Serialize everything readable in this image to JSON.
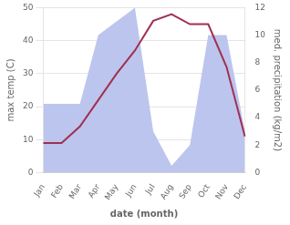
{
  "chart_data": {
    "type": "line",
    "categories": [
      "Jan",
      "Feb",
      "Mar",
      "Apr",
      "May",
      "Jun",
      "Jul",
      "Aug",
      "Sep",
      "Oct",
      "Nov",
      "Dec"
    ],
    "series": [
      {
        "type": "line",
        "color": "#a03050",
        "values": [
          9,
          9,
          14,
          22,
          30,
          37,
          46,
          48,
          45,
          45,
          32,
          11
        ]
      },
      {
        "type": "area",
        "color": "#bcc5ee",
        "axis": "y2",
        "values": [
          5,
          5,
          5,
          10,
          11,
          12,
          3,
          0.5,
          2,
          10,
          10,
          3
        ]
      }
    ],
    "xlabel": "date (month)",
    "ylabel": "max temp (C)",
    "y2label": "med. precipitation (kg/m2)",
    "ylim": [
      0,
      50
    ],
    "yticks": [
      0,
      10,
      20,
      30,
      40,
      50
    ],
    "y2lim": [
      0,
      12
    ],
    "y2ticks": [
      0,
      2,
      4,
      6,
      8,
      10,
      12
    ],
    "grid": true
  }
}
